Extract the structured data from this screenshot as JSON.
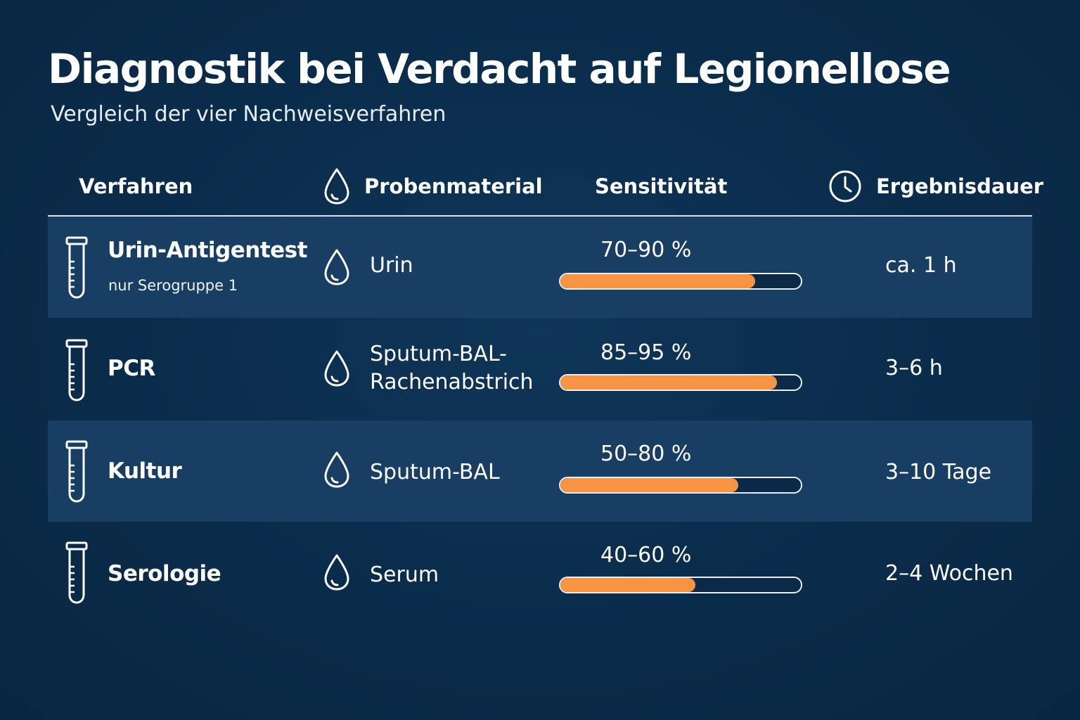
{
  "title": "Diagnostik bei Verdacht auf Legionellose",
  "subtitle": "Vergleich der vier Nachweisverfahren",
  "header": {
    "method": "Verfahren",
    "material": "Probenmaterial",
    "sensitivity": "Sensitivität",
    "duration": "Ergebnisdauer",
    "material_icon": "drop-icon",
    "duration_icon": "clock-icon"
  },
  "colors": {
    "background": "#0a2c4b",
    "row_shade": "#183f63",
    "bar_fill": "#f79443"
  },
  "rows": [
    {
      "method": "Urin-Antigentest",
      "note": "nur Serogruppe 1",
      "material": [
        "Urin"
      ],
      "sensitivity_label": "70–90 %",
      "sensitivity_range": [
        70,
        90
      ],
      "bar_fill_percent": 81,
      "duration": "ca. 1 h",
      "icon": "test-tube-icon"
    },
    {
      "method": "PCR",
      "material": [
        "Sputum-BAL-",
        "Rachenabstrich"
      ],
      "sensitivity_label": "85–95 %",
      "sensitivity_range": [
        85,
        95
      ],
      "bar_fill_percent": 90,
      "duration": "3–6 h",
      "icon": "test-tube-icon"
    },
    {
      "method": "Kultur",
      "material": [
        "Sputum-BAL"
      ],
      "sensitivity_label": "50–80 %",
      "sensitivity_range": [
        50,
        80
      ],
      "bar_fill_percent": 74,
      "duration": "3–10 Tage",
      "icon": "test-tube-icon"
    },
    {
      "method": "Serologie",
      "material": [
        "Serum"
      ],
      "sensitivity_label": "40–60 %",
      "sensitivity_range": [
        40,
        60
      ],
      "bar_fill_percent": 56,
      "duration": "2–4 Wochen",
      "icon": "test-tube-icon"
    }
  ]
}
